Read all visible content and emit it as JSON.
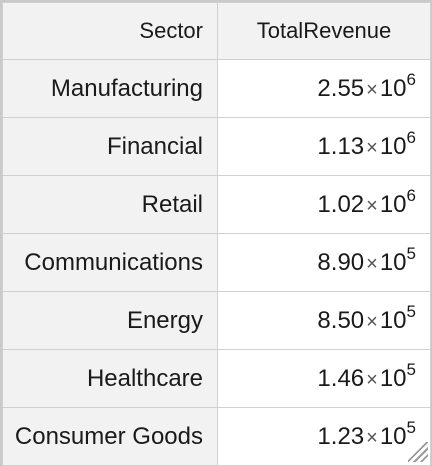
{
  "table": {
    "headers": {
      "sector": "Sector",
      "total_revenue": "TotalRevenue"
    },
    "rows": [
      {
        "sector": "Manufacturing",
        "mantissa": "2.55",
        "times": "×",
        "base": "10",
        "exponent": "6"
      },
      {
        "sector": "Financial",
        "mantissa": "1.13",
        "times": "×",
        "base": "10",
        "exponent": "6"
      },
      {
        "sector": "Retail",
        "mantissa": "1.02",
        "times": "×",
        "base": "10",
        "exponent": "6"
      },
      {
        "sector": "Communications",
        "mantissa": "8.90",
        "times": "×",
        "base": "10",
        "exponent": "5"
      },
      {
        "sector": "Energy",
        "mantissa": "8.50",
        "times": "×",
        "base": "10",
        "exponent": "5"
      },
      {
        "sector": "Healthcare",
        "mantissa": "1.46",
        "times": "×",
        "base": "10",
        "exponent": "5"
      },
      {
        "sector": "Consumer Goods",
        "mantissa": "1.23",
        "times": "×",
        "base": "10",
        "exponent": "5"
      }
    ]
  },
  "colors": {
    "header_bg": "#f2f2f2",
    "border": "#d0d0d0"
  }
}
